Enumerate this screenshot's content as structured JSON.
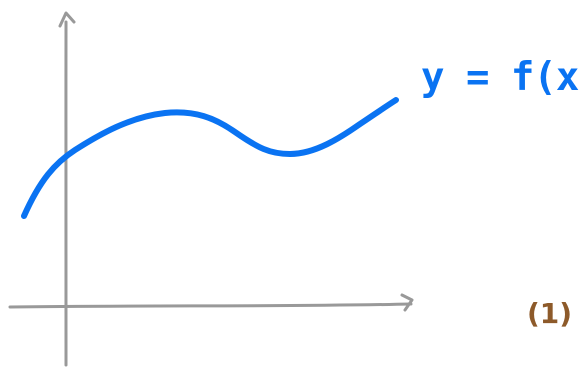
{
  "figure": {
    "curve_label": "y = f(x)",
    "figure_number": "(1)",
    "colors": {
      "axes": "#999999",
      "curve": "#0a73f2",
      "curve_label": "#0a73f2",
      "figure_number": "#8d5a2a",
      "background": "#ffffff"
    }
  }
}
